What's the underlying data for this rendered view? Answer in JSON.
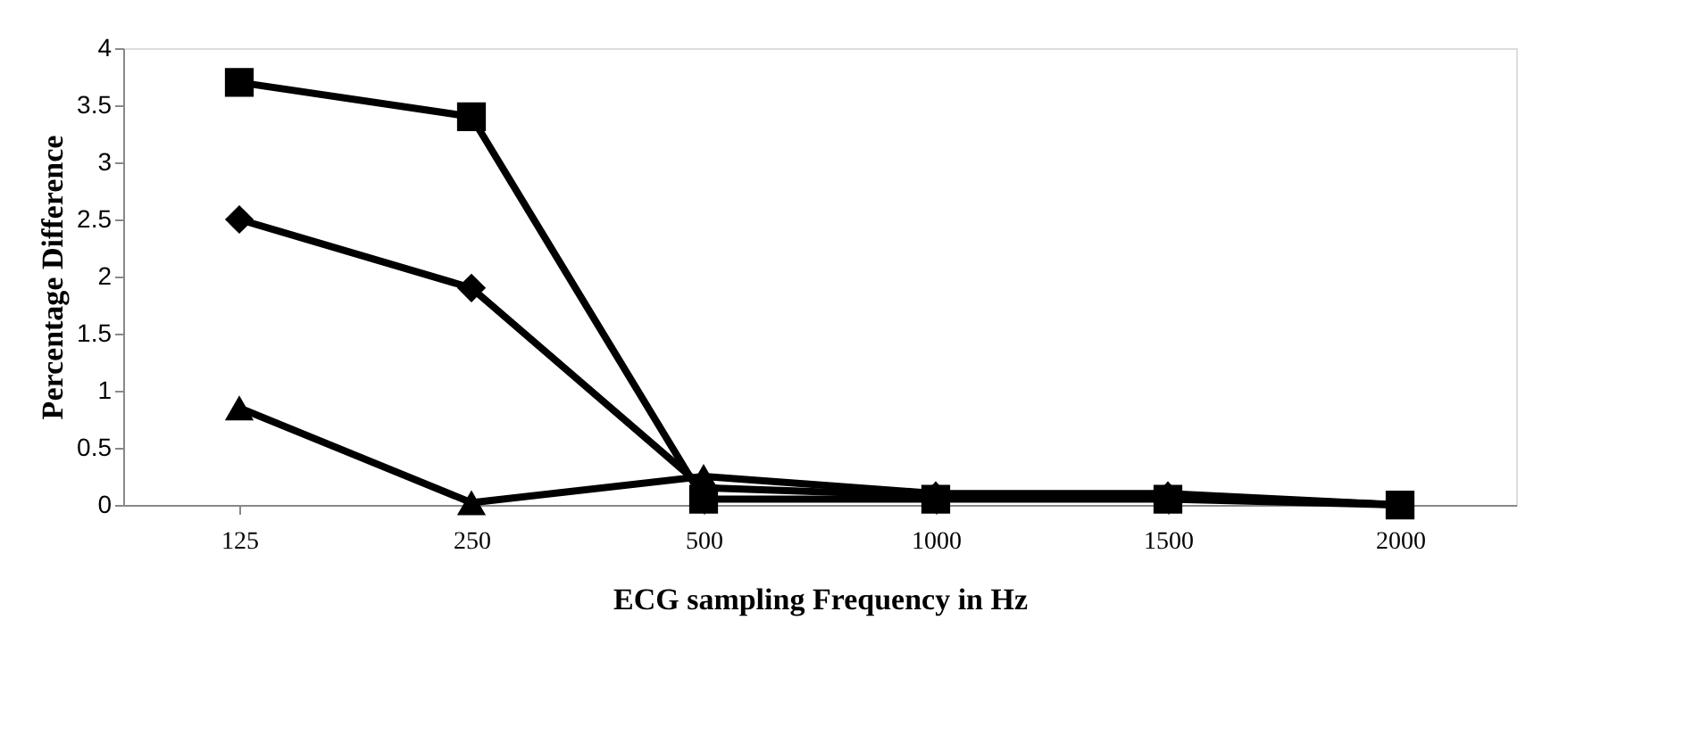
{
  "chart_data": {
    "type": "line",
    "xlabel": "ECG sampling Frequency in Hz",
    "ylabel": "Percentage Difference",
    "categories": [
      "125",
      "250",
      "500",
      "1000",
      "1500",
      "2000"
    ],
    "series": [
      {
        "color": "#000000",
        "marker": "square",
        "values": [
          3.7,
          3.4,
          0.05,
          0.05,
          0.05,
          0
        ]
      },
      {
        "color": "#000000",
        "marker": "diamond",
        "values": [
          2.5,
          1.9,
          0.15,
          0.08,
          0.08,
          0
        ]
      },
      {
        "color": "#000000",
        "marker": "triangle",
        "values": [
          0.85,
          0.02,
          0.25,
          0.1,
          0.1,
          0
        ]
      }
    ],
    "ylim": [
      0,
      4
    ],
    "yticks": [
      0,
      0.5,
      1,
      1.5,
      2,
      2.5,
      3,
      3.5,
      4
    ],
    "grid": false,
    "legend": false,
    "line_style": "solid"
  }
}
